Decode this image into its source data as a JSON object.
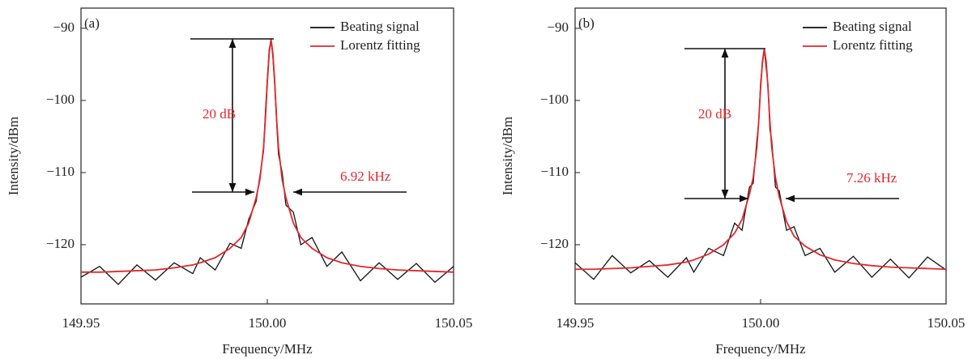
{
  "chart_data": [
    {
      "type": "line",
      "panel_label": "(a)",
      "x_label": "Frequency/MHz",
      "y_label": "Intensity/dBm",
      "x": [
        149.95,
        149.955,
        149.96,
        149.965,
        149.97,
        149.975,
        149.98,
        149.982,
        149.986,
        149.99,
        149.993,
        149.995,
        149.997,
        149.998,
        149.999,
        149.9995,
        150.0,
        150.0005,
        150.001,
        150.0015,
        150.002,
        150.0025,
        150.003,
        150.004,
        150.005,
        150.007,
        150.009,
        150.012,
        150.016,
        150.02,
        150.025,
        150.03,
        150.035,
        150.04,
        150.045,
        150.05
      ],
      "series": [
        {
          "name": "Beating signal",
          "color": "#111111",
          "values": [
            -124.5,
            -123,
            -125.5,
            -122.8,
            -124.9,
            -122.5,
            -124,
            -121.8,
            -123.5,
            -119.8,
            -120.5,
            -116.5,
            -114,
            -110.5,
            -107,
            -101.5,
            -97,
            -93,
            -91.6,
            -94,
            -98,
            -103,
            -107.5,
            -110,
            -114.5,
            -115.5,
            -120,
            -119,
            -123,
            -121,
            -125,
            -122.5,
            -124.8,
            -122.6,
            -125.2,
            -123
          ]
        },
        {
          "name": "Lorentz fitting",
          "color": "#e0282d",
          "values": [
            -123.8,
            -123.8,
            -123.7,
            -123.6,
            -123.5,
            -123.2,
            -122.8,
            -122.5,
            -121.8,
            -120.5,
            -119,
            -117,
            -113.5,
            -111,
            -106.5,
            -102.5,
            -97.5,
            -93.5,
            -91.5,
            -93.5,
            -97.5,
            -102.5,
            -106.5,
            -111,
            -113.5,
            -117,
            -119,
            -120.5,
            -121.8,
            -122.5,
            -123,
            -123.3,
            -123.5,
            -123.6,
            -123.7,
            -123.8
          ]
        }
      ],
      "xlim": [
        149.95,
        150.05
      ],
      "ylim": [
        -128.2,
        -87.2
      ],
      "xticks": [
        149.95,
        {
          "value": 150,
          "label": "150.00"
        },
        150.05
      ],
      "yticks": [
        {
          "value": -90,
          "label": "−90"
        },
        {
          "value": -100,
          "label": "−100"
        },
        {
          "value": -110,
          "label": "−110"
        },
        {
          "value": -120,
          "label": "−120"
        }
      ],
      "legend": "upper right",
      "annotations": {
        "depth": "20 dB",
        "linewidth": "6.92 kHz",
        "color": "#e0282d"
      }
    },
    {
      "type": "line",
      "panel_label": "(b)",
      "x_label": "Frequency/MHz",
      "y_label": "Intensity/dBm",
      "x": [
        149.95,
        149.955,
        149.96,
        149.965,
        149.97,
        149.975,
        149.98,
        149.982,
        149.986,
        149.99,
        149.993,
        149.995,
        149.997,
        149.998,
        149.999,
        149.9995,
        150.0,
        150.0005,
        150.001,
        150.0015,
        150.002,
        150.0025,
        150.003,
        150.004,
        150.005,
        150.007,
        150.009,
        150.012,
        150.016,
        150.02,
        150.025,
        150.03,
        150.035,
        150.04,
        150.045,
        150.05
      ],
      "series": [
        {
          "name": "Beating signal",
          "color": "#111111",
          "values": [
            -122.5,
            -124.8,
            -121.5,
            -123.9,
            -122.2,
            -124.5,
            -121.8,
            -123.8,
            -120.5,
            -121.5,
            -117,
            -118,
            -112,
            -111.5,
            -105.5,
            -103,
            -97.5,
            -95,
            -92.9,
            -95.5,
            -97.8,
            -104,
            -105.5,
            -112,
            -112.5,
            -118,
            -117.5,
            -121.5,
            -120.5,
            -123.8,
            -121.6,
            -124.5,
            -122,
            -124.6,
            -121.7,
            -123.5
          ]
        },
        {
          "name": "Lorentz fitting",
          "color": "#e0282d",
          "values": [
            -123.4,
            -123.4,
            -123.3,
            -123.2,
            -123,
            -122.8,
            -122.4,
            -122.1,
            -121.3,
            -120,
            -118.4,
            -116.5,
            -113,
            -110.7,
            -106.5,
            -102.8,
            -98.3,
            -94.6,
            -92.8,
            -94.6,
            -98.3,
            -102.8,
            -106.5,
            -110.7,
            -113.3,
            -116.8,
            -118.8,
            -120.2,
            -121.4,
            -122.1,
            -122.6,
            -122.9,
            -123.1,
            -123.2,
            -123.3,
            -123.4
          ]
        }
      ],
      "xlim": [
        149.95,
        150.05
      ],
      "ylim": [
        -128.2,
        -87.2
      ],
      "xticks": [
        149.95,
        {
          "value": 150,
          "label": "150.00"
        },
        150.05
      ],
      "yticks": [
        {
          "value": -90,
          "label": "−90"
        },
        {
          "value": -100,
          "label": "−100"
        },
        {
          "value": -110,
          "label": "−110"
        },
        {
          "value": -120,
          "label": "−120"
        }
      ],
      "legend": "upper right",
      "annotations": {
        "depth": "20 dB",
        "linewidth": "7.26 kHz",
        "color": "#e0282d"
      }
    }
  ]
}
